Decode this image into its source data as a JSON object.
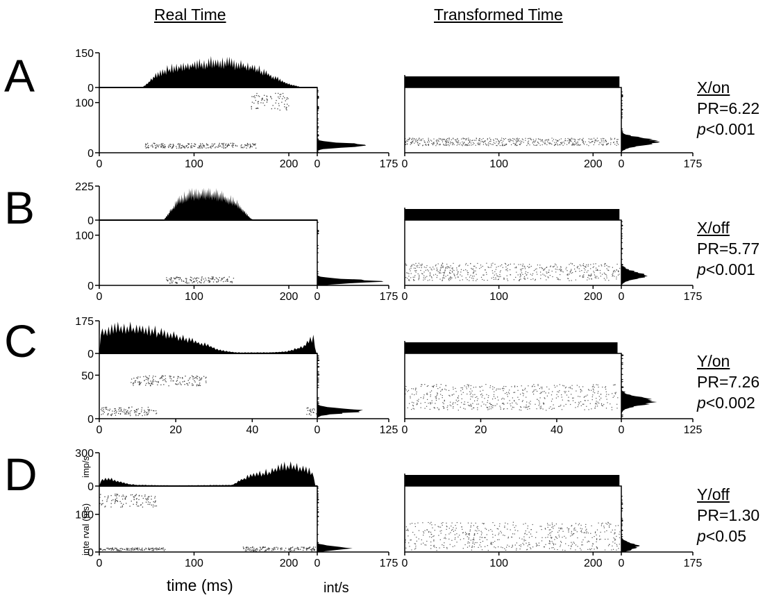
{
  "headers": {
    "real": "Real Time",
    "transformed": "Transformed Time"
  },
  "axis_labels": {
    "x": "time (ms)",
    "intervals": "int/s",
    "rate": "imp/s",
    "interval": "inte rval (ms)"
  },
  "chart_data": [
    {
      "panel": "A",
      "type": "area",
      "subplot": "real-time PSTH",
      "ylabel": "",
      "xlim": [
        0,
        230
      ],
      "ylim": [
        0,
        150
      ],
      "yticks": [
        0,
        150
      ],
      "envelope": [
        [
          45,
          0
        ],
        [
          50,
          15
        ],
        [
          60,
          55
        ],
        [
          70,
          75
        ],
        [
          80,
          85
        ],
        [
          90,
          95
        ],
        [
          100,
          100
        ],
        [
          110,
          105
        ],
        [
          120,
          108
        ],
        [
          130,
          108
        ],
        [
          140,
          105
        ],
        [
          150,
          100
        ],
        [
          160,
          90
        ],
        [
          170,
          75
        ],
        [
          180,
          55
        ],
        [
          190,
          35
        ],
        [
          200,
          15
        ],
        [
          210,
          5
        ],
        [
          215,
          0
        ]
      ]
    },
    {
      "panel": "A",
      "type": "scatter",
      "subplot": "real-time interval raster",
      "ylabel": "",
      "xlim": [
        0,
        230
      ],
      "xticks": [
        0,
        100,
        200
      ],
      "ylim": [
        0,
        130
      ],
      "yticks": [
        0,
        100
      ],
      "bands": [
        {
          "x": [
            48,
            165
          ],
          "y": [
            10,
            20
          ]
        },
        {
          "x": [
            160,
            200
          ],
          "y": [
            85,
            120
          ]
        }
      ]
    },
    {
      "panel": "A",
      "type": "area",
      "subplot": "interval histogram",
      "xlim": [
        0,
        175
      ],
      "xticks": [
        0,
        175
      ],
      "peak": {
        "interval": 15,
        "rate": 130
      }
    },
    {
      "panel": "A",
      "type": "bar",
      "subplot": "transformed PSTH",
      "xlim": [
        0,
        230
      ],
      "level": 1
    },
    {
      "panel": "A",
      "type": "scatter",
      "subplot": "transformed raster",
      "xlim": [
        0,
        230
      ],
      "xticks": [
        0,
        100,
        200
      ],
      "band": {
        "x": [
          0,
          228
        ],
        "y": [
          15,
          30
        ]
      }
    },
    {
      "panel": "A",
      "type": "area",
      "subplot": "transformed interval histogram",
      "xlim": [
        0,
        175
      ],
      "xticks": [
        0,
        175
      ],
      "peak": {
        "interval": 22,
        "rate": 90
      }
    },
    {
      "panel": "B",
      "type": "area",
      "subplot": "real-time PSTH",
      "xlim": [
        0,
        230
      ],
      "ylim": [
        0,
        225
      ],
      "yticks": [
        0,
        225
      ],
      "envelope": [
        [
          68,
          0
        ],
        [
          75,
          60
        ],
        [
          85,
          140
        ],
        [
          95,
          165
        ],
        [
          105,
          175
        ],
        [
          115,
          175
        ],
        [
          125,
          165
        ],
        [
          135,
          145
        ],
        [
          145,
          110
        ],
        [
          152,
          60
        ],
        [
          160,
          10
        ],
        [
          163,
          0
        ]
      ]
    },
    {
      "panel": "B",
      "type": "scatter",
      "subplot": "real-time interval raster",
      "xlim": [
        0,
        230
      ],
      "xticks": [
        0,
        100,
        200
      ],
      "ylim": [
        0,
        130
      ],
      "yticks": [
        0,
        100
      ],
      "bands": [
        {
          "x": [
            70,
            142
          ],
          "y": [
            5,
            18
          ]
        }
      ]
    },
    {
      "panel": "B",
      "type": "area",
      "subplot": "interval histogram",
      "xlim": [
        0,
        175
      ],
      "xticks": [
        0,
        175
      ],
      "peak": {
        "interval": 8,
        "rate": 150
      }
    },
    {
      "panel": "B",
      "type": "bar",
      "subplot": "transformed PSTH",
      "xlim": [
        0,
        230
      ],
      "level": 1
    },
    {
      "panel": "B",
      "type": "scatter",
      "subplot": "transformed raster",
      "xlim": [
        0,
        230
      ],
      "xticks": [
        0,
        100,
        200
      ],
      "band": {
        "x": [
          0,
          228
        ],
        "y": [
          10,
          45
        ]
      }
    },
    {
      "panel": "B",
      "type": "area",
      "subplot": "transformed interval histogram",
      "xlim": [
        0,
        175
      ],
      "xticks": [
        0,
        175
      ],
      "peak": {
        "interval": 20,
        "rate": 60
      }
    },
    {
      "panel": "C",
      "type": "area",
      "subplot": "real-time PSTH",
      "xlim": [
        0,
        57
      ],
      "ylim": [
        0,
        175
      ],
      "yticks": [
        0,
        175
      ],
      "envelope": [
        [
          0,
          0
        ],
        [
          0.3,
          115
        ],
        [
          3,
          135
        ],
        [
          8,
          140
        ],
        [
          14,
          120
        ],
        [
          20,
          95
        ],
        [
          26,
          60
        ],
        [
          32,
          15
        ],
        [
          36,
          5
        ],
        [
          44,
          5
        ],
        [
          49,
          10
        ],
        [
          53,
          35
        ],
        [
          56,
          85
        ],
        [
          56.8,
          0
        ]
      ]
    },
    {
      "panel": "C",
      "type": "scatter",
      "subplot": "real-time interval raster",
      "xlim": [
        0,
        57
      ],
      "xticks": [
        0,
        20,
        40
      ],
      "ylim": [
        0,
        75
      ],
      "yticks": [
        0,
        50
      ],
      "bands": [
        {
          "x": [
            0,
            15
          ],
          "y": [
            4,
            14
          ]
        },
        {
          "x": [
            8,
            28
          ],
          "y": [
            38,
            50
          ]
        },
        {
          "x": [
            54,
            57
          ],
          "y": [
            4,
            14
          ]
        }
      ]
    },
    {
      "panel": "C",
      "type": "area",
      "subplot": "interval histogram",
      "xlim": [
        0,
        125
      ],
      "xticks": [
        0,
        125
      ],
      "peak": {
        "interval": 9,
        "rate": 75
      }
    },
    {
      "panel": "C",
      "type": "bar",
      "subplot": "transformed PSTH",
      "xlim": [
        0,
        57
      ],
      "level": 1
    },
    {
      "panel": "C",
      "type": "scatter",
      "subplot": "transformed raster",
      "xlim": [
        0,
        57
      ],
      "xticks": [
        0,
        20,
        40
      ],
      "band": {
        "x": [
          0,
          56
        ],
        "y": [
          10,
          40
        ]
      }
    },
    {
      "panel": "C",
      "type": "area",
      "subplot": "transformed interval histogram",
      "xlim": [
        0,
        125
      ],
      "xticks": [
        0,
        125
      ],
      "peak": {
        "interval": 20,
        "rate": 55
      }
    },
    {
      "panel": "D",
      "type": "area",
      "subplot": "real-time PSTH",
      "ylabel": "imp/s",
      "xlim": [
        0,
        230
      ],
      "ylim": [
        0,
        300
      ],
      "yticks": [
        0,
        300
      ],
      "envelope": [
        [
          0,
          0
        ],
        [
          1,
          45
        ],
        [
          10,
          70
        ],
        [
          20,
          45
        ],
        [
          30,
          20
        ],
        [
          40,
          10
        ],
        [
          80,
          5
        ],
        [
          140,
          10
        ],
        [
          150,
          60
        ],
        [
          160,
          95
        ],
        [
          170,
          115
        ],
        [
          180,
          130
        ],
        [
          190,
          165
        ],
        [
          200,
          180
        ],
        [
          210,
          170
        ],
        [
          220,
          140
        ],
        [
          227,
          100
        ],
        [
          228,
          0
        ]
      ]
    },
    {
      "panel": "D",
      "type": "scatter",
      "subplot": "real-time interval raster",
      "ylabel": "inte rval (ms)",
      "xlim": [
        0,
        230
      ],
      "xticks": [
        0,
        100,
        200
      ],
      "ylim": [
        0,
        175
      ],
      "yticks": [
        0,
        100
      ],
      "bands": [
        {
          "x": [
            0,
            70
          ],
          "y": [
            5,
            12
          ]
        },
        {
          "x": [
            0,
            60
          ],
          "y": [
            120,
            155
          ]
        },
        {
          "x": [
            150,
            228
          ],
          "y": [
            3,
            15
          ]
        }
      ]
    },
    {
      "panel": "D",
      "type": "area",
      "subplot": "interval histogram",
      "xlim": [
        0,
        175
      ],
      "xticks": [
        0,
        175
      ],
      "peak": {
        "interval": 10,
        "rate": 80
      }
    },
    {
      "panel": "D",
      "type": "bar",
      "subplot": "transformed PSTH",
      "xlim": [
        0,
        230
      ],
      "level": 1
    },
    {
      "panel": "D",
      "type": "scatter",
      "subplot": "transformed raster",
      "xlim": [
        0,
        230
      ],
      "xticks": [
        0,
        100,
        200
      ],
      "band": {
        "x": [
          0,
          228
        ],
        "y": [
          5,
          80
        ]
      }
    },
    {
      "panel": "D",
      "type": "area",
      "subplot": "transformed interval histogram",
      "xlim": [
        0,
        175
      ],
      "xticks": [
        0,
        175
      ],
      "peak": {
        "interval": 15,
        "rate": 40
      }
    }
  ],
  "panels": [
    {
      "letter": "A",
      "condition": "X/on",
      "pr": "PR=6.22",
      "p_italic": "p",
      "p_rest": "<0.001"
    },
    {
      "letter": "B",
      "condition": "X/off",
      "pr": "PR=5.77",
      "p_italic": "p",
      "p_rest": "<0.001"
    },
    {
      "letter": "C",
      "condition": "Y/on",
      "pr": "PR=7.26",
      "p_italic": "p",
      "p_rest": "<0.002"
    },
    {
      "letter": "D",
      "condition": "Y/off",
      "pr": "PR=1.30",
      "p_italic": "p",
      "p_rest": "<0.05"
    }
  ]
}
